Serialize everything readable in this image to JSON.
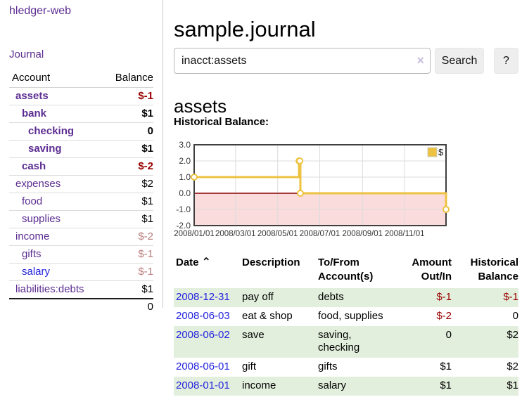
{
  "colors": {
    "link_purple": "#5c2d91",
    "link_blue": "#2323dd",
    "negative_strong": "#990000",
    "negative_muted": "#b87a7a",
    "row_green": "#e3efdd"
  },
  "sidebar": {
    "brand": "hledger-web",
    "journal_link": "Journal",
    "col_account": "Account",
    "col_balance": "Balance",
    "rows": [
      {
        "account": "assets",
        "balance": "$-1"
      },
      {
        "account": "bank",
        "balance": "$1"
      },
      {
        "account": "checking",
        "balance": "0"
      },
      {
        "account": "saving",
        "balance": "$1"
      },
      {
        "account": "cash",
        "balance": "$-2"
      },
      {
        "account": "expenses",
        "balance": "$2"
      },
      {
        "account": "food",
        "balance": "$1"
      },
      {
        "account": "supplies",
        "balance": "$1"
      },
      {
        "account": "income",
        "balance": "$-2"
      },
      {
        "account": "gifts",
        "balance": "$-1"
      },
      {
        "account": "salary",
        "balance": "$-1"
      },
      {
        "account": "liabilities:debts",
        "balance": "$1"
      }
    ],
    "total": "0"
  },
  "main": {
    "title": "sample.journal",
    "search": {
      "value": "inacct:assets",
      "clear_icon": "×",
      "search_button": "Search",
      "help_button": "?"
    },
    "account_heading": "assets",
    "chart_title": "Historical Balance:"
  },
  "chart_data": {
    "type": "line",
    "style": "steps",
    "title": "Historical Balance",
    "series": [
      {
        "name": "$",
        "points": [
          [
            "2008-01-01",
            1
          ],
          [
            "2008-06-01",
            2
          ],
          [
            "2008-06-02",
            2
          ],
          [
            "2008-06-03",
            0
          ],
          [
            "2008-12-31",
            -1
          ]
        ]
      }
    ],
    "x_range": [
      "2008-01-01",
      "2008-12-31"
    ],
    "ylim": [
      -2,
      3
    ],
    "x_ticks": [
      {
        "date": "2008-01-01",
        "label": "2008/01/01"
      },
      {
        "date": "2008-03-01",
        "label": "2008/03/01"
      },
      {
        "date": "2008-05-01",
        "label": "2008/05/01"
      },
      {
        "date": "2008-07-01",
        "label": "2008/07/01"
      },
      {
        "date": "2008-09-01",
        "label": "2008/09/01"
      },
      {
        "date": "2008-11-01",
        "label": "2008/11/01"
      }
    ],
    "y_ticks": [
      {
        "value": 3,
        "label": "3.0"
      },
      {
        "value": 2,
        "label": "2.0"
      },
      {
        "value": 1,
        "label": "1.0"
      },
      {
        "value": 0,
        "label": "0.0"
      },
      {
        "value": -1,
        "label": "-1.0"
      },
      {
        "value": -2,
        "label": "-2.0"
      }
    ],
    "legend": {
      "label": "$",
      "position": "top-right"
    },
    "grid": true,
    "line_color": "#edc240",
    "marker_fill": "#ffffff",
    "negative_region_fill": "#fbdcdc",
    "zero_line_color": "#8b0000",
    "border_color": "#3f3f3f",
    "grid_color": "#dcdcdc"
  },
  "register": {
    "headers": [
      "Date",
      "Description",
      "To/From Account(s)",
      "Amount Out/In",
      "Historical Balance"
    ],
    "sort_indicator": "⌃",
    "rows": [
      {
        "date": "2008-12-31",
        "description": "pay off",
        "accounts": "debts",
        "amount": "$-1",
        "balance": "$-1"
      },
      {
        "date": "2008-06-03",
        "description": "eat & shop",
        "accounts": "food, supplies",
        "amount": "$-2",
        "balance": "0"
      },
      {
        "date": "2008-06-02",
        "description": "save",
        "accounts": "saving, checking",
        "amount": "0",
        "balance": "$2"
      },
      {
        "date": "2008-06-01",
        "description": "gift",
        "accounts": "gifts",
        "amount": "$1",
        "balance": "$2"
      },
      {
        "date": "2008-01-01",
        "description": "income",
        "accounts": "salary",
        "amount": "$1",
        "balance": "$1"
      }
    ]
  }
}
